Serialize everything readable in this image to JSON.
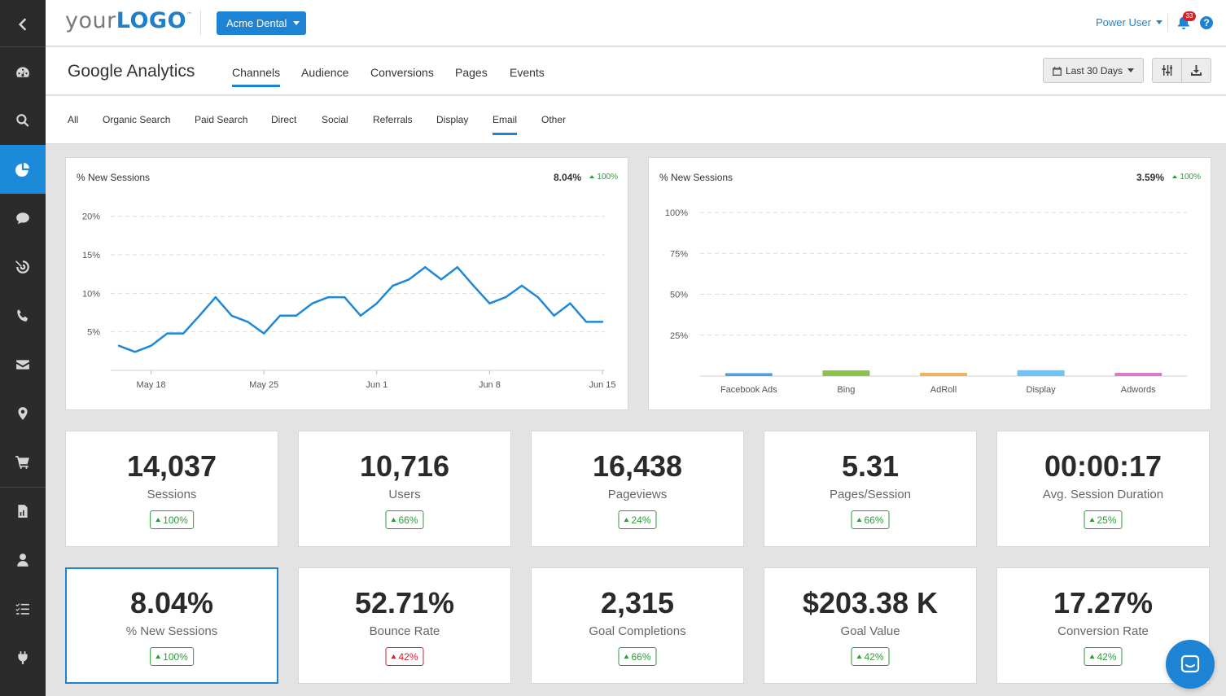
{
  "sidebar": {
    "items": [
      {
        "icon": "chevron-left-icon"
      },
      {
        "icon": "dashboard-icon"
      },
      {
        "icon": "search-icon"
      },
      {
        "icon": "pie-chart-icon",
        "active": true
      },
      {
        "icon": "chat-icon"
      },
      {
        "icon": "target-icon"
      },
      {
        "icon": "phone-icon"
      },
      {
        "icon": "mail-icon"
      },
      {
        "icon": "location-pin-icon"
      },
      {
        "icon": "cart-icon"
      },
      {
        "icon": "report-icon"
      },
      {
        "icon": "user-icon"
      },
      {
        "icon": "checklist-icon"
      },
      {
        "icon": "plug-icon"
      }
    ]
  },
  "header": {
    "logo_prefix": "your",
    "logo_main": "LOGO",
    "logo_tm": "™",
    "client_label": "Acme Dental",
    "user_label": "Power User",
    "notification_count": "33",
    "help_label": "?"
  },
  "titlebar": {
    "title": "Google Analytics",
    "tabs": [
      "Channels",
      "Audience",
      "Conversions",
      "Pages",
      "Events"
    ],
    "active_tab": "Channels",
    "date_range": "Last 30 Days"
  },
  "subtabs": {
    "items": [
      "All",
      "Organic Search",
      "Paid Search",
      "Direct",
      "Social",
      "Referrals",
      "Display",
      "Email",
      "Other"
    ],
    "active": "Email"
  },
  "charts": {
    "line": {
      "title": "% New Sessions",
      "value": "8.04%",
      "delta": "100%"
    },
    "bar": {
      "title": "% New Sessions",
      "value": "3.59%",
      "delta": "100%"
    }
  },
  "chart_data": [
    {
      "type": "line",
      "title": "% New Sessions",
      "x": [
        "May 16",
        "May 17",
        "May 18",
        "May 19",
        "May 20",
        "May 21",
        "May 22",
        "May 23",
        "May 24",
        "May 25",
        "May 26",
        "May 27",
        "May 28",
        "May 29",
        "May 30",
        "May 31",
        "Jun 1",
        "Jun 2",
        "Jun 3",
        "Jun 4",
        "Jun 5",
        "Jun 6",
        "Jun 7",
        "Jun 8",
        "Jun 9",
        "Jun 10",
        "Jun 11",
        "Jun 12",
        "Jun 13",
        "Jun 14",
        "Jun 15"
      ],
      "x_tick_labels": [
        "May 18",
        "May 25",
        "Jun 1",
        "Jun 8",
        "Jun 15"
      ],
      "x_tick_positions": [
        2,
        9,
        16,
        23,
        30
      ],
      "values": [
        3.2,
        2.4,
        3.2,
        4.8,
        4.8,
        7.1,
        9.5,
        7.1,
        6.3,
        4.8,
        7.1,
        7.1,
        8.7,
        9.5,
        9.5,
        7.1,
        8.7,
        11.0,
        11.8,
        13.4,
        11.8,
        13.4,
        11.0,
        8.7,
        9.5,
        11.0,
        9.5,
        7.1,
        8.7,
        6.3,
        6.3
      ],
      "y_ticks": [
        "5%",
        "10%",
        "15%",
        "20%"
      ],
      "y_tick_values": [
        5,
        10,
        15,
        20
      ],
      "ylim": [
        0,
        20.5
      ],
      "color": "#1e88d8",
      "grid": true
    },
    {
      "type": "bar",
      "title": "% New Sessions",
      "categories": [
        "Facebook Ads",
        "Bing",
        "AdRoll",
        "Display",
        "Adwords"
      ],
      "values": [
        1.8,
        3.5,
        2.0,
        3.6,
        2.0
      ],
      "colors": [
        "#4aa3e0",
        "#8bc34a",
        "#f0b25a",
        "#6cc3f5",
        "#d97bc8"
      ],
      "y_ticks": [
        "25%",
        "50%",
        "75%",
        "100%"
      ],
      "y_tick_values": [
        25,
        50,
        75,
        100
      ],
      "ylim": [
        0,
        100
      ],
      "grid": true
    }
  ],
  "metrics": [
    {
      "value": "14,037",
      "label": "Sessions",
      "delta": "100%",
      "direction": "up"
    },
    {
      "value": "10,716",
      "label": "Users",
      "delta": "66%",
      "direction": "up"
    },
    {
      "value": "16,438",
      "label": "Pageviews",
      "delta": "24%",
      "direction": "up"
    },
    {
      "value": "5.31",
      "label": "Pages/Session",
      "delta": "66%",
      "direction": "up"
    },
    {
      "value": "00:00:17",
      "label": "Avg. Session Duration",
      "delta": "25%",
      "direction": "up"
    },
    {
      "value": "8.04%",
      "label": "% New Sessions",
      "delta": "100%",
      "direction": "up",
      "selected": true
    },
    {
      "value": "52.71%",
      "label": "Bounce Rate",
      "delta": "42%",
      "direction": "up",
      "negative": true
    },
    {
      "value": "2,315",
      "label": "Goal Completions",
      "delta": "66%",
      "direction": "up"
    },
    {
      "value": "$203.38 K",
      "label": "Goal Value",
      "delta": "42%",
      "direction": "up"
    },
    {
      "value": "17.27%",
      "label": "Conversion Rate",
      "delta": "42%",
      "direction": "up"
    }
  ],
  "colors": {
    "accent": "#1e83d2",
    "positive": "#2e9b3a",
    "negative": "#d2232a",
    "sidebar": "#2b2b2b"
  }
}
